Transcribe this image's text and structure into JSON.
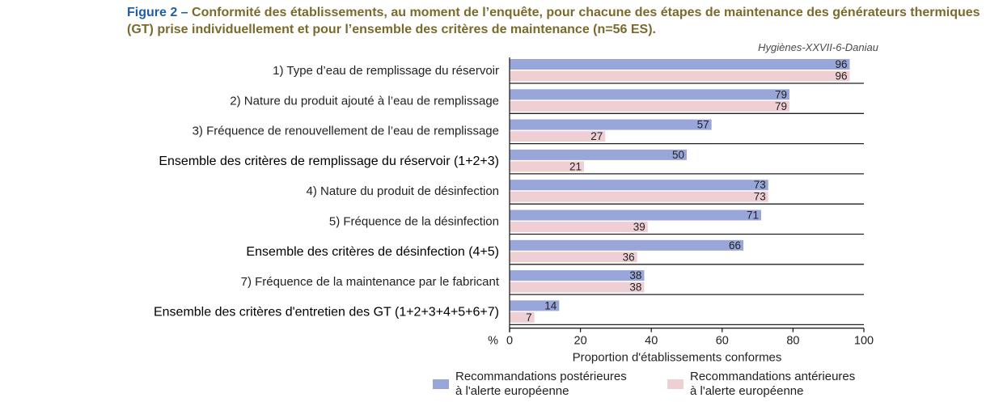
{
  "title_prefix": "Figure 2 – ",
  "title_text": "Conformité des établissements, au moment de l’enquête, pour chacune des étapes de maintenance des générateurs thermiques (GT) prise individuellement et pour l’ensemble des critères de maintenance (n=56 ES).",
  "source": "Hygiènes-XXVII-6-Daniau",
  "colors": {
    "post": "#98a6da",
    "ante": "#eecfd4"
  },
  "chart_data": {
    "type": "bar",
    "orientation": "horizontal",
    "categories": [
      "1) Type d’eau de remplissage du réservoir",
      "2) Nature du produit ajouté à l’eau de remplissage",
      "3) Fréquence de renouvellement de l’eau de remplissage",
      "Ensemble des critères de remplissage du réservoir (1+2+3)",
      "4) Nature du produit de désinfection",
      "5) Fréquence de la désinfection",
      "Ensemble des critères de désinfection (4+5)",
      "7) Fréquence de la maintenance par le fabricant",
      "Ensemble des critères d'entretien des GT (1+2+3+4+5+6+7)"
    ],
    "bold_categories": [
      3,
      6,
      8
    ],
    "series": [
      {
        "name": "Recommandations postérieures à l'alerte européenne",
        "values": [
          96,
          79,
          57,
          50,
          73,
          71,
          66,
          38,
          14
        ]
      },
      {
        "name": "Recommandations antérieures à l'alerte européenne",
        "values": [
          96,
          79,
          27,
          21,
          73,
          39,
          36,
          38,
          7
        ]
      }
    ],
    "xlim": [
      0,
      100
    ],
    "xticks": [
      0,
      20,
      40,
      60,
      80,
      100
    ],
    "xunit": "%",
    "xlabel": "Proportion d'établissements conformes",
    "legend": {
      "post_line1": "Recommandations postérieures",
      "post_line2": "à l'alerte européenne",
      "ante_line1": "Recommandations antérieures",
      "ante_line2": "à l'alerte européenne",
      "placement": "bottom"
    }
  }
}
